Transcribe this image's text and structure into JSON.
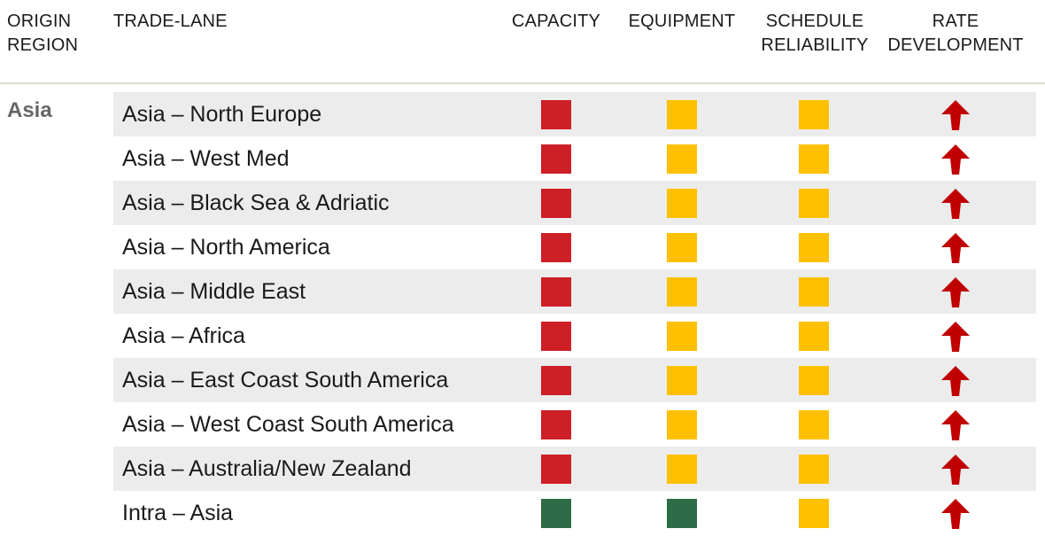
{
  "header": {
    "origin_region": "ORIGIN\nREGION",
    "trade_lane": "TRADE-LANE",
    "capacity": "CAPACITY",
    "equipment": "EQUIPMENT",
    "schedule_reliability": "SCHEDULE\nRELIABILITY",
    "rate_development": "RATE\nDEVELOPMENT"
  },
  "colors": {
    "red": "#cd1f26",
    "amber": "#ffc000",
    "green": "#2e6b47",
    "arrow": "#c00000",
    "row_shade": "#ececec"
  },
  "region": "Asia",
  "rows": [
    {
      "lane": "Asia – North Europe",
      "capacity": "red",
      "equipment": "amber",
      "schedule_reliability": "amber",
      "rate_development": "up"
    },
    {
      "lane": "Asia – West Med",
      "capacity": "red",
      "equipment": "amber",
      "schedule_reliability": "amber",
      "rate_development": "up"
    },
    {
      "lane": "Asia – Black Sea & Adriatic",
      "capacity": "red",
      "equipment": "amber",
      "schedule_reliability": "amber",
      "rate_development": "up"
    },
    {
      "lane": "Asia – North America",
      "capacity": "red",
      "equipment": "amber",
      "schedule_reliability": "amber",
      "rate_development": "up"
    },
    {
      "lane": "Asia – Middle East",
      "capacity": "red",
      "equipment": "amber",
      "schedule_reliability": "amber",
      "rate_development": "up"
    },
    {
      "lane": "Asia – Africa",
      "capacity": "red",
      "equipment": "amber",
      "schedule_reliability": "amber",
      "rate_development": "up"
    },
    {
      "lane": "Asia – East Coast South America",
      "capacity": "red",
      "equipment": "amber",
      "schedule_reliability": "amber",
      "rate_development": "up"
    },
    {
      "lane": "Asia – West Coast South America",
      "capacity": "red",
      "equipment": "amber",
      "schedule_reliability": "amber",
      "rate_development": "up"
    },
    {
      "lane": "Asia – Australia/New Zealand",
      "capacity": "red",
      "equipment": "amber",
      "schedule_reliability": "amber",
      "rate_development": "up"
    },
    {
      "lane": "Intra – Asia",
      "capacity": "green",
      "equipment": "green",
      "schedule_reliability": "amber",
      "rate_development": "up"
    }
  ]
}
